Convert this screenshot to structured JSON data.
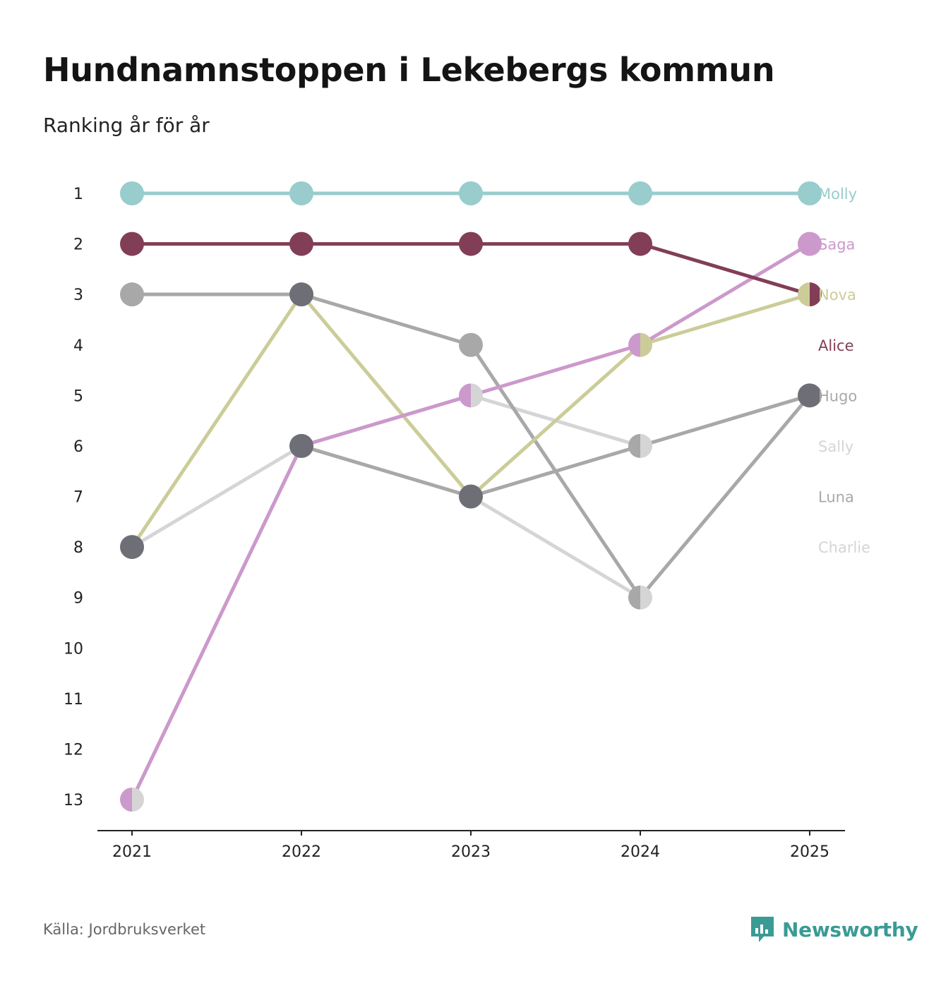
{
  "header": {
    "title": "Hundnamnstoppen i Lekebergs kommun",
    "subtitle": "Ranking år för år"
  },
  "footer": {
    "source": "Källa: Jordbruksverket",
    "brand": "Newsworthy",
    "brand_icon": "newsworthy-logo-icon",
    "brand_color": "#3a9b95"
  },
  "chart_data": {
    "type": "line",
    "subtype": "bump",
    "title": "Hundnamnstoppen i Lekebergs kommun",
    "subtitle": "Ranking år för år",
    "xlabel": "",
    "ylabel": "",
    "x": [
      "2021",
      "2022",
      "2023",
      "2024",
      "2025"
    ],
    "y_ticks": [
      1,
      2,
      3,
      4,
      5,
      6,
      7,
      8,
      9,
      10,
      11,
      12,
      13
    ],
    "ylim": [
      1,
      13
    ],
    "y_inverted": true,
    "grid": false,
    "legend": "right-side end labels",
    "label_order": [
      "Molly",
      "Saga",
      "Nova",
      "Alice",
      "Hugo",
      "Sally",
      "Luna",
      "Charlie"
    ],
    "series": [
      {
        "name": "Charlie",
        "color": "#d5d5d5",
        "values": [
          8,
          6,
          7,
          9,
          null
        ]
      },
      {
        "name": "Sally",
        "color": "#d5d5d5",
        "values": [
          13,
          6,
          5,
          6,
          null
        ]
      },
      {
        "name": "Luna",
        "color": "#a8a8a8",
        "values": [
          3,
          3,
          4,
          9,
          5
        ]
      },
      {
        "name": "Hugo",
        "color": "#a8a8a8",
        "values": [
          null,
          6,
          7,
          6,
          5
        ]
      },
      {
        "name": "Nova",
        "color": "#cccc99",
        "values": [
          8,
          3,
          7,
          4,
          3
        ]
      },
      {
        "name": "Saga",
        "color": "#cc99cc",
        "values": [
          13,
          6,
          5,
          4,
          2
        ]
      },
      {
        "name": "Alice",
        "color": "#823e57",
        "values": [
          2,
          2,
          2,
          2,
          3
        ]
      },
      {
        "name": "Molly",
        "color": "#99cccc",
        "values": [
          1,
          1,
          1,
          1,
          1
        ]
      }
    ],
    "markers": [
      {
        "x": "2021",
        "rank": 1,
        "colors": [
          "#99cccc"
        ]
      },
      {
        "x": "2021",
        "rank": 2,
        "colors": [
          "#823e57"
        ]
      },
      {
        "x": "2021",
        "rank": 3,
        "colors": [
          "#a8a8a8"
        ]
      },
      {
        "x": "2021",
        "rank": 8,
        "colors": [
          "#6e6e76"
        ]
      },
      {
        "x": "2021",
        "rank": 13,
        "colors": [
          "#cc99cc",
          "#d5d5d5"
        ]
      },
      {
        "x": "2022",
        "rank": 1,
        "colors": [
          "#99cccc"
        ]
      },
      {
        "x": "2022",
        "rank": 2,
        "colors": [
          "#823e57"
        ]
      },
      {
        "x": "2022",
        "rank": 3,
        "colors": [
          "#6e6e76"
        ]
      },
      {
        "x": "2022",
        "rank": 6,
        "colors": [
          "#6e6e76"
        ]
      },
      {
        "x": "2023",
        "rank": 1,
        "colors": [
          "#99cccc"
        ]
      },
      {
        "x": "2023",
        "rank": 2,
        "colors": [
          "#823e57"
        ]
      },
      {
        "x": "2023",
        "rank": 4,
        "colors": [
          "#a8a8a8"
        ]
      },
      {
        "x": "2023",
        "rank": 5,
        "colors": [
          "#cc99cc",
          "#d5d5d5"
        ]
      },
      {
        "x": "2023",
        "rank": 7,
        "colors": [
          "#6e6e76"
        ]
      },
      {
        "x": "2024",
        "rank": 1,
        "colors": [
          "#99cccc"
        ]
      },
      {
        "x": "2024",
        "rank": 2,
        "colors": [
          "#823e57"
        ]
      },
      {
        "x": "2024",
        "rank": 4,
        "colors": [
          "#cc99cc",
          "#cccc99"
        ]
      },
      {
        "x": "2024",
        "rank": 6,
        "colors": [
          "#a8a8a8",
          "#d5d5d5"
        ]
      },
      {
        "x": "2024",
        "rank": 9,
        "colors": [
          "#a8a8a8",
          "#d5d5d5"
        ]
      },
      {
        "x": "2025",
        "rank": 1,
        "colors": [
          "#99cccc"
        ]
      },
      {
        "x": "2025",
        "rank": 2,
        "colors": [
          "#cc99cc"
        ]
      },
      {
        "x": "2025",
        "rank": 3,
        "colors": [
          "#cccc99",
          "#823e57"
        ]
      },
      {
        "x": "2025",
        "rank": 5,
        "colors": [
          "#6e6e76"
        ]
      }
    ]
  }
}
